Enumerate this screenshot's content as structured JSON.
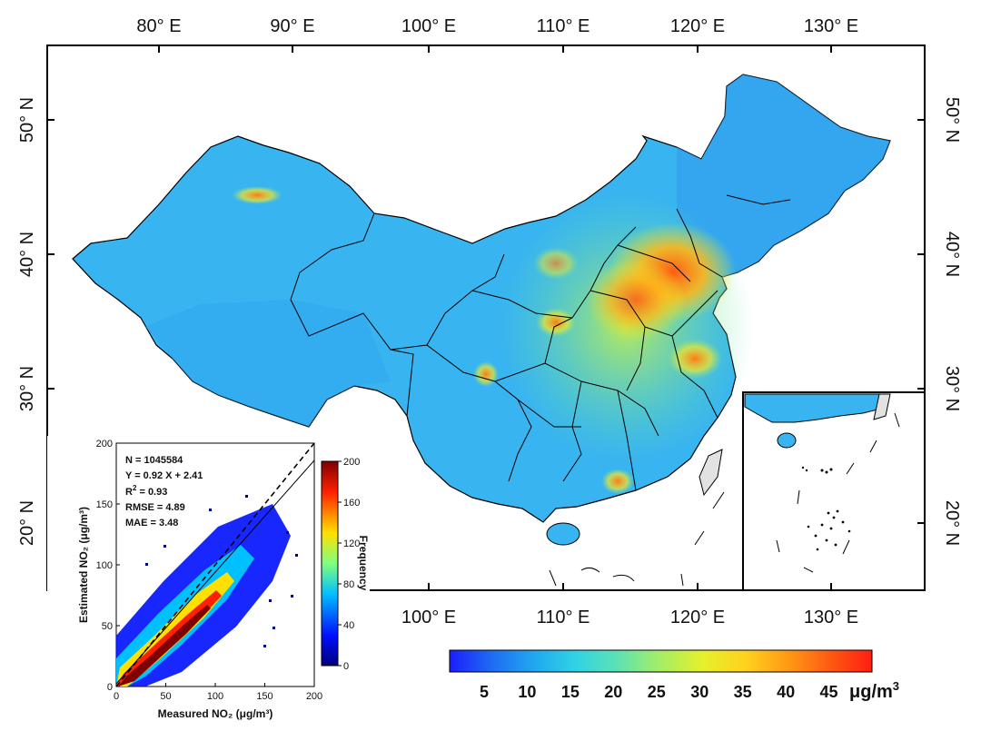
{
  "map": {
    "top_lon_labels": [
      "80° E",
      "90° E",
      "100° E",
      "110° E",
      "120° E",
      "130° E"
    ],
    "bottom_lon_labels": [
      "100° E",
      "110° E",
      "120° E",
      "130° E"
    ],
    "left_lat_labels": [
      "50° N",
      "40° N",
      "30° N",
      "20° N"
    ],
    "right_lat_labels": [
      "50° N",
      "40° N",
      "30° N",
      "20° N"
    ],
    "colorbar": {
      "ticks": [
        "5",
        "10",
        "15",
        "20",
        "25",
        "30",
        "35",
        "40",
        "45"
      ],
      "unit": "μg/m",
      "unit_sup": "3",
      "colors": [
        "#1b1efc",
        "#1f6cf2",
        "#20a8f0",
        "#31d3e4",
        "#5fe2b2",
        "#a6ee63",
        "#e6f02c",
        "#ffd21e",
        "#ff9a15",
        "#ff5a12",
        "#ff1e12"
      ]
    }
  },
  "scatter": {
    "stats": {
      "n": "N = 1045584",
      "fit": "Y = 0.92 X + 2.41",
      "r2_prefix": "R",
      "r2_sup": "2",
      "r2_value": " = 0.93",
      "rmse": "RMSE = 4.89",
      "mae": "MAE = 3.48"
    },
    "xlabel": "Measured NO₂ (μg/m³)",
    "ylabel": "Estimated NO₂ (μg/m³)",
    "x_ticks": [
      "0",
      "50",
      "100",
      "150",
      "200"
    ],
    "y_ticks": [
      "0",
      "50",
      "100",
      "150",
      "200"
    ],
    "freq_label": "Frequency",
    "freq_ticks": [
      "0",
      "40",
      "80",
      "120",
      "160",
      "200"
    ]
  },
  "chart_data": {
    "type": "scatter",
    "title": "",
    "xlabel": "Measured NO₂ (μg/m³)",
    "ylabel": "Estimated NO₂ (μg/m³)",
    "xlim": [
      0,
      200
    ],
    "ylim": [
      0,
      200
    ],
    "n": 1045584,
    "fit": {
      "slope": 0.92,
      "intercept": 2.41
    },
    "r2": 0.93,
    "rmse": 4.89,
    "mae": 3.48,
    "colorbar": {
      "label": "Frequency",
      "range": [
        0,
        200
      ]
    }
  }
}
